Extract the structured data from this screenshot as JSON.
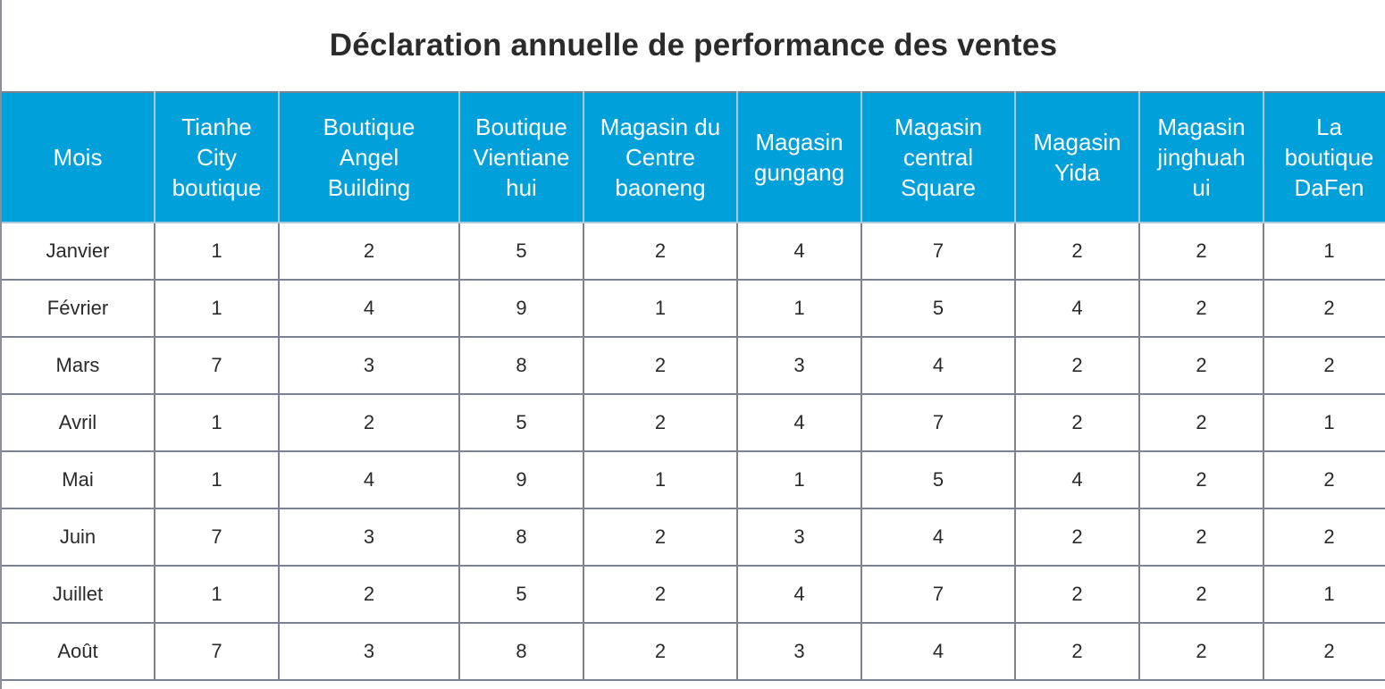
{
  "title": "Déclaration annuelle de performance des ventes",
  "colors": {
    "header_bg": "#00a0da",
    "header_text": "#ffffff",
    "grid": "#7d8190"
  },
  "table": {
    "columns": [
      "Mois",
      "Tianhe\nCity\nboutique",
      "Boutique\nAngel\nBuilding",
      "Boutique\nVientiane\nhui",
      "Magasin du\nCentre\nbaoneng",
      "Magasin\ngungang",
      "Magasin\ncentral\nSquare",
      "Magasin\nYida",
      "Magasin\njinghuah\nui",
      "La\nboutique\nDaFen"
    ],
    "rows": [
      {
        "month": "Janvier",
        "values": [
          "1",
          "2",
          "5",
          "2",
          "4",
          "7",
          "2",
          "2",
          "1"
        ]
      },
      {
        "month": "Février",
        "values": [
          "1",
          "4",
          "9",
          "1",
          "1",
          "5",
          "4",
          "2",
          "2"
        ]
      },
      {
        "month": "Mars",
        "values": [
          "7",
          "3",
          "8",
          "2",
          "3",
          "4",
          "2",
          "2",
          "2"
        ]
      },
      {
        "month": "Avril",
        "values": [
          "1",
          "2",
          "5",
          "2",
          "4",
          "7",
          "2",
          "2",
          "1"
        ]
      },
      {
        "month": "Mai",
        "values": [
          "1",
          "4",
          "9",
          "1",
          "1",
          "5",
          "4",
          "2",
          "2"
        ]
      },
      {
        "month": "Juin",
        "values": [
          "7",
          "3",
          "8",
          "2",
          "3",
          "4",
          "2",
          "2",
          "2"
        ]
      },
      {
        "month": "Juillet",
        "values": [
          "1",
          "2",
          "5",
          "2",
          "4",
          "7",
          "2",
          "2",
          "1"
        ]
      },
      {
        "month": "Août",
        "values": [
          "7",
          "3",
          "8",
          "2",
          "3",
          "4",
          "2",
          "2",
          "2"
        ]
      }
    ]
  }
}
